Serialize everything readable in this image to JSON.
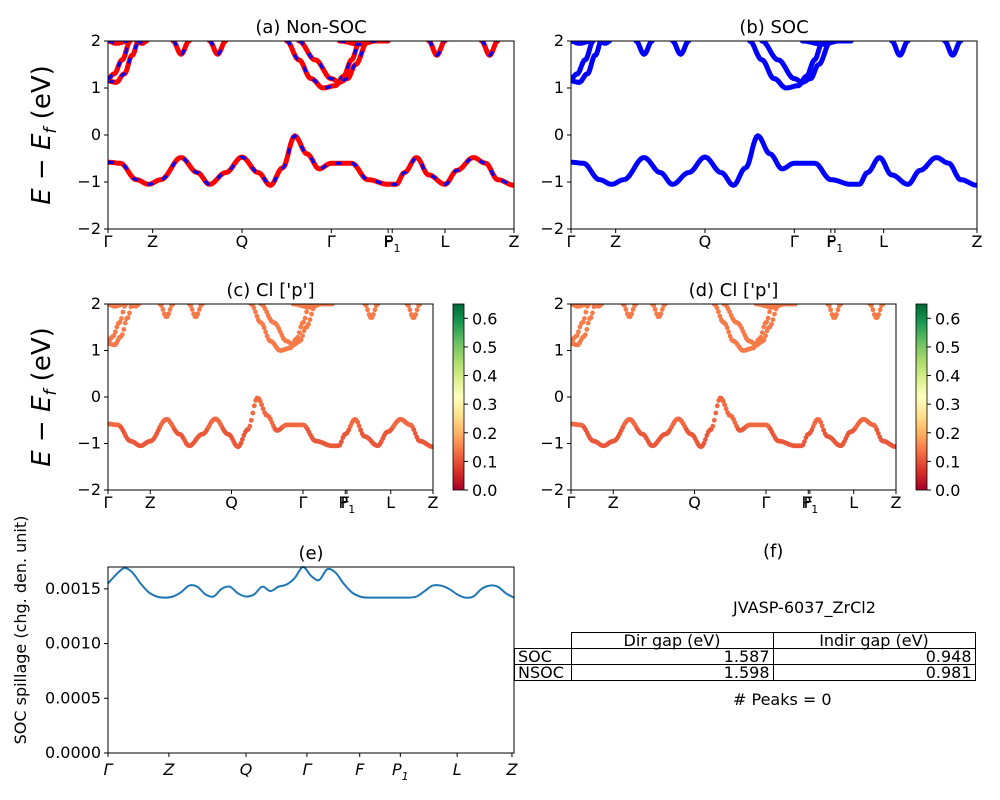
{
  "chart_data": [
    {
      "id": "a",
      "type": "line",
      "title": "(a) Non-SOC",
      "ylabel": "E − E_f (eV)",
      "ylim": [
        -2,
        2
      ],
      "yticks": [
        "2",
        "1",
        "0",
        "−1",
        "−2"
      ],
      "kpoints": [
        {
          "label": "Γ",
          "x": 0.0
        },
        {
          "label": "Z",
          "x": 0.11
        },
        {
          "label": "Q",
          "x": 0.33
        },
        {
          "label": "Γ",
          "x": 0.55
        },
        {
          "label": "F",
          "x": 0.69
        },
        {
          "label": "P₁",
          "x": 0.7
        },
        {
          "label": "L",
          "x": 0.83
        },
        {
          "label": "Z",
          "x": 1.0
        }
      ],
      "series": [
        {
          "values_x": [
            0,
            0.02,
            0.05,
            0.08,
            0.11,
            0.14,
            0.18,
            0.22,
            0.26,
            0.3,
            0.33,
            0.36,
            0.39,
            0.42,
            0.46,
            0.5,
            0.55,
            0.6,
            0.65,
            0.69,
            0.7,
            0.73,
            0.76,
            0.79,
            0.83,
            0.86,
            0.9,
            0.93,
            0.96,
            1.0
          ],
          "values_y": [
            -0.58,
            -0.6,
            -0.75,
            -1.0,
            -1.05,
            -0.9,
            -0.5,
            -0.75,
            -1.05,
            -0.75,
            -0.5,
            -0.8,
            -1.05,
            -0.4,
            0.0,
            -0.7,
            -0.6,
            -0.6,
            -1.0,
            -1.05,
            -1.05,
            -0.6,
            -0.5,
            -1.0,
            -0.55,
            -0.5,
            -1.0,
            -0.6,
            -0.5,
            -1.05
          ]
        },
        {
          "values_x": [
            0,
            0.02,
            0.04,
            0.06,
            0.08
          ],
          "values_y": [
            1.15,
            1.2,
            1.4,
            1.8,
            2.0
          ]
        },
        {
          "values_x": [
            0,
            0.02,
            0.04,
            0.06,
            0.075
          ],
          "values_y": [
            1.2,
            1.1,
            1.25,
            1.6,
            2.0
          ]
        },
        {
          "values_x": [
            0.0,
            0.02,
            0.04
          ],
          "values_y": [
            2.0,
            1.95,
            2.0
          ]
        },
        {
          "values_x": [
            0.15,
            0.17,
            0.19
          ],
          "values_y": [
            2.0,
            1.7,
            2.0
          ]
        },
        {
          "values_x": [
            0.26,
            0.28,
            0.3
          ],
          "values_y": [
            2.0,
            1.7,
            2.0
          ]
        },
        {
          "values_x": [
            0.42,
            0.44,
            0.46,
            0.48,
            0.5,
            0.52,
            0.55,
            0.58,
            0.61
          ],
          "values_y": [
            2.0,
            1.8,
            1.5,
            1.2,
            1.0,
            1.05,
            1.3,
            1.6,
            2.0
          ]
        },
        {
          "values_x": [
            0.44,
            0.48,
            0.52,
            0.55,
            0.58,
            0.61,
            0.63
          ],
          "values_y": [
            2.0,
            1.6,
            1.2,
            1.1,
            1.2,
            1.6,
            2.0
          ]
        },
        {
          "values_x": [
            0.56,
            0.6,
            0.64,
            0.69
          ],
          "values_y": [
            2.0,
            1.95,
            2.0,
            2.0
          ]
        },
        {
          "values_x": [
            0.78,
            0.8,
            0.82
          ],
          "values_y": [
            2.0,
            1.7,
            2.0
          ]
        },
        {
          "values_x": [
            0.88,
            0.9,
            0.92
          ],
          "values_y": [
            2.0,
            1.7,
            2.0
          ]
        }
      ]
    },
    {
      "id": "b",
      "type": "line",
      "title": "(b) SOC",
      "ylim": [
        -2,
        2
      ],
      "yticks": [
        "2",
        "1",
        "0",
        "−1",
        "−2"
      ],
      "kpoints": [
        {
          "label": "Γ",
          "x": 0.0
        },
        {
          "label": "Z",
          "x": 0.11
        },
        {
          "label": "Q",
          "x": 0.33
        },
        {
          "label": "Γ",
          "x": 0.55
        },
        {
          "label": "F",
          "x": 0.64
        },
        {
          "label": "P₁",
          "x": 0.65
        },
        {
          "label": "L",
          "x": 0.77
        },
        {
          "label": "Z",
          "x": 1.0
        }
      ]
    },
    {
      "id": "c",
      "type": "scatter",
      "title": "(c)  Cl ['p']",
      "ylabel": "E − E_f (eV)",
      "ylim": [
        -2,
        2
      ],
      "colorbar": {
        "min": 0.0,
        "max": 0.65,
        "ticks": [
          "0.6",
          "0.5",
          "0.4",
          "0.3",
          "0.2",
          "0.1",
          "0.0"
        ]
      },
      "kpoints": [
        {
          "label": "Γ",
          "x": 0.0
        },
        {
          "label": "Z",
          "x": 0.13
        },
        {
          "label": "Q",
          "x": 0.38
        },
        {
          "label": "Γ",
          "x": 0.6
        },
        {
          "label": "F",
          "x": 0.73
        },
        {
          "label": "P₁",
          "x": 0.735
        },
        {
          "label": "L",
          "x": 0.87
        },
        {
          "label": "Z",
          "x": 1.0
        }
      ]
    },
    {
      "id": "d",
      "type": "scatter",
      "title": "(d) Cl ['p']",
      "ylim": [
        -2,
        2
      ],
      "colorbar": {
        "min": 0.0,
        "max": 0.65,
        "ticks": [
          "0.6",
          "0.5",
          "0.4",
          "0.3",
          "0.2",
          "0.1",
          "0.0"
        ]
      },
      "kpoints": [
        {
          "label": "Γ",
          "x": 0.0
        },
        {
          "label": "Z",
          "x": 0.13
        },
        {
          "label": "Q",
          "x": 0.38
        },
        {
          "label": "Γ",
          "x": 0.6
        },
        {
          "label": "F",
          "x": 0.73
        },
        {
          "label": "P₁",
          "x": 0.735
        },
        {
          "label": "L",
          "x": 0.87
        },
        {
          "label": "Z",
          "x": 1.0
        }
      ]
    },
    {
      "id": "e",
      "type": "line",
      "title": "(e)",
      "ylabel": "SOC spillage (chg. den. unit)",
      "ylim": [
        0,
        0.0017
      ],
      "yticks": [
        "0.0015",
        "0.0010",
        "0.0005",
        "0.0000"
      ],
      "kpoints": [
        {
          "label": "Γ",
          "x": 0.0
        },
        {
          "label": "Z",
          "x": 0.15
        },
        {
          "label": "Q",
          "x": 0.34
        },
        {
          "label": "Γ",
          "x": 0.49
        },
        {
          "label": "F",
          "x": 0.62
        },
        {
          "label": "P₁",
          "x": 0.72
        },
        {
          "label": "L",
          "x": 0.86
        },
        {
          "label": "Z",
          "x": 0.995
        }
      ],
      "x": [
        0,
        0.02,
        0.04,
        0.06,
        0.08,
        0.1,
        0.12,
        0.14,
        0.16,
        0.18,
        0.2,
        0.22,
        0.24,
        0.26,
        0.28,
        0.3,
        0.32,
        0.34,
        0.36,
        0.38,
        0.4,
        0.42,
        0.44,
        0.46,
        0.48,
        0.5,
        0.52,
        0.54,
        0.56,
        0.58,
        0.6,
        0.62,
        0.64,
        0.66,
        0.68,
        0.7,
        0.72,
        0.74,
        0.76,
        0.78,
        0.8,
        0.82,
        0.84,
        0.86,
        0.88,
        0.9,
        0.92,
        0.94,
        0.96,
        0.98,
        1.0
      ],
      "values": [
        0.00155,
        0.00163,
        0.00169,
        0.00165,
        0.00155,
        0.00147,
        0.00143,
        0.00142,
        0.00143,
        0.00147,
        0.00153,
        0.00152,
        0.00145,
        0.00143,
        0.0015,
        0.00152,
        0.00146,
        0.00143,
        0.00145,
        0.00152,
        0.00148,
        0.00152,
        0.00154,
        0.0016,
        0.0017,
        0.00162,
        0.00158,
        0.00168,
        0.00165,
        0.00155,
        0.00147,
        0.00143,
        0.00142,
        0.00142,
        0.00142,
        0.00142,
        0.00142,
        0.00142,
        0.00143,
        0.00148,
        0.00153,
        0.00153,
        0.0015,
        0.00145,
        0.00142,
        0.00143,
        0.0015,
        0.00153,
        0.00152,
        0.00146,
        0.00142
      ]
    },
    {
      "id": "f",
      "type": "table",
      "title": "(f)",
      "subtitle": "JVASP-6037_ZrCl2",
      "columns": [
        "Dir gap (eV)",
        "Indir gap (eV)"
      ],
      "rows": [
        {
          "label": "SOC",
          "dir": "1.587",
          "indir": "0.948"
        },
        {
          "label": "NSOC",
          "dir": "1.598",
          "indir": "0.981"
        }
      ],
      "footer": "# Peaks = 0"
    }
  ]
}
